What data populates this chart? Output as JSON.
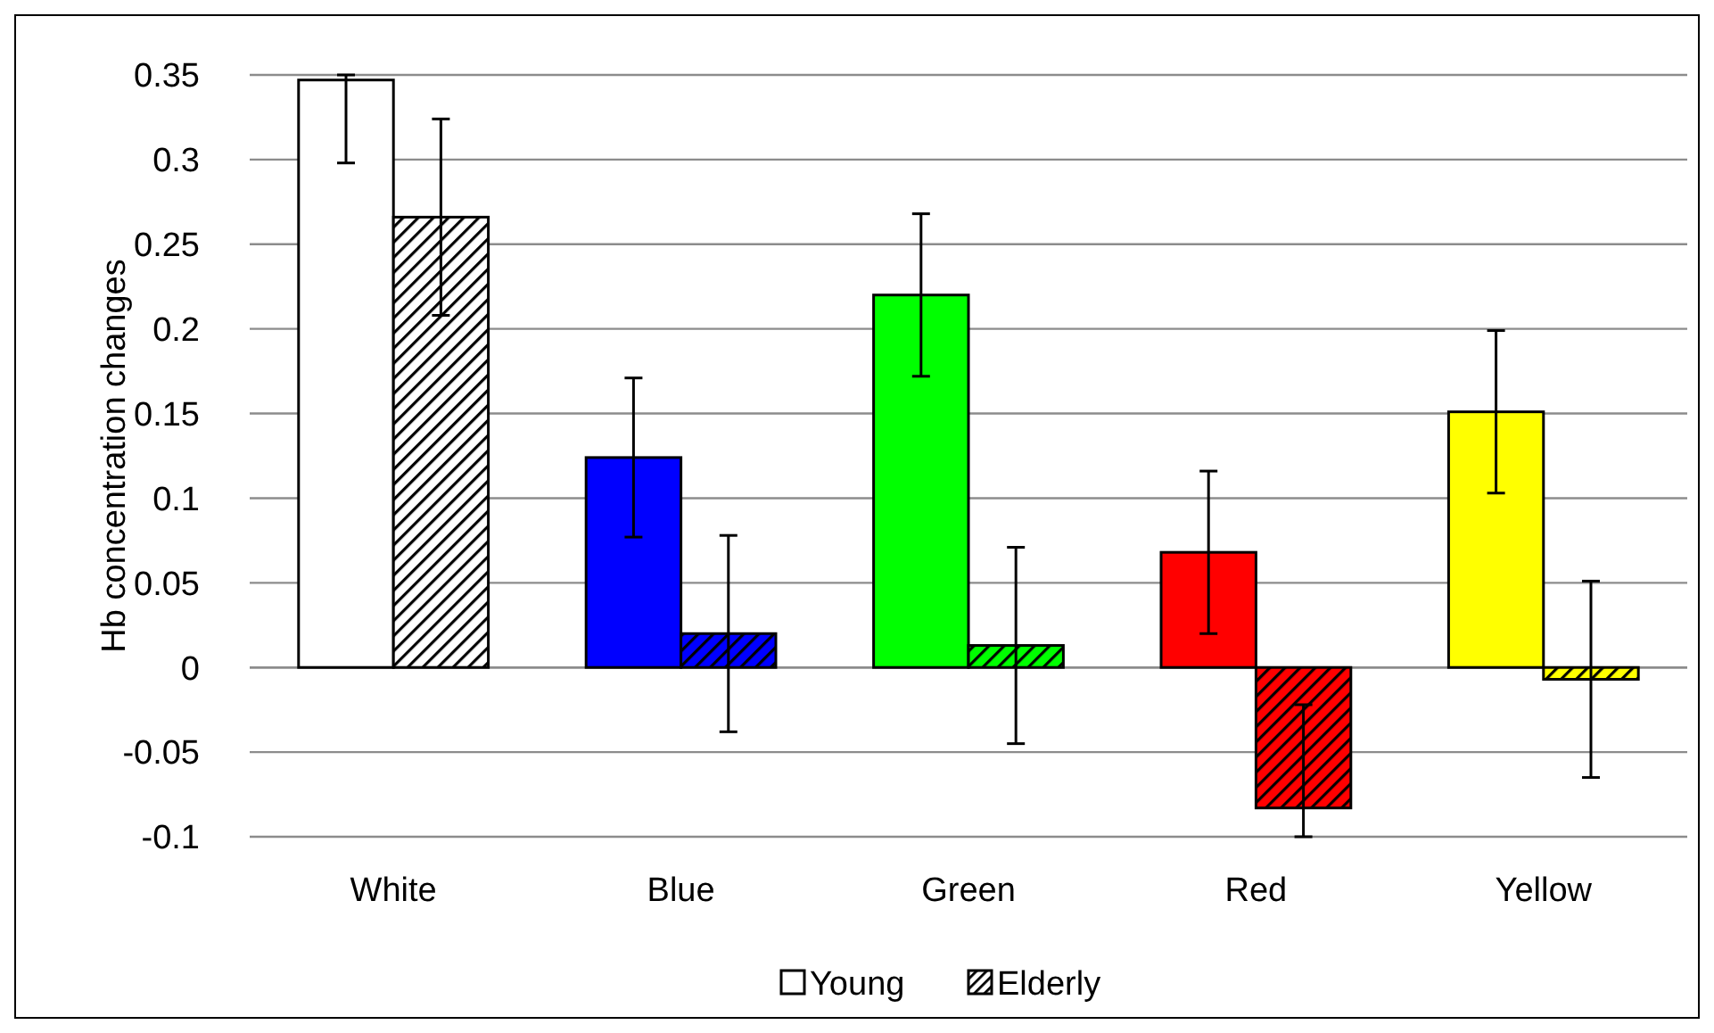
{
  "chart_data": {
    "type": "bar",
    "ylabel": "Hb concentration changes",
    "categories": [
      "White",
      "Blue",
      "Green",
      "Red",
      "Yellow"
    ],
    "series": [
      {
        "name": "Young",
        "color": "#ffffff",
        "colors": [
          "#ffffff",
          "#0000ff",
          "#00ff00",
          "#ff0000",
          "#ffff00"
        ],
        "values": [
          0.347,
          0.124,
          0.22,
          0.068,
          0.151
        ],
        "errors": [
          [
            0.298,
            0.35
          ],
          0.047,
          0.048,
          0.048,
          0.048
        ]
      },
      {
        "name": "Elderly",
        "color": "#ffffff",
        "colors": [
          "#ffffff",
          "#0000ff",
          "#00ff00",
          "#ff0000",
          "#ffff00"
        ],
        "values": [
          0.266,
          0.02,
          0.013,
          -0.083,
          -0.007
        ],
        "errors": [
          0.058,
          0.058,
          0.058,
          [
            -0.1,
            -0.022
          ],
          0.058
        ]
      }
    ],
    "ylim": [
      -0.1,
      0.35
    ],
    "yticks": [
      {
        "value": -0.1,
        "label": "-0.1"
      },
      {
        "value": -0.05,
        "label": "-0.05"
      },
      0,
      {
        "value": 0.05,
        "label": "0.05"
      },
      {
        "value": 0.1,
        "label": "0.1"
      },
      {
        "value": 0.15,
        "label": "0.15"
      },
      {
        "value": 0.2,
        "label": "0.2"
      },
      {
        "value": 0.25,
        "label": "0.25"
      },
      {
        "value": 0.3,
        "label": "0.3"
      },
      {
        "value": 0.35,
        "label": "0.35"
      }
    ],
    "grid": "y",
    "legend": "bottom"
  }
}
